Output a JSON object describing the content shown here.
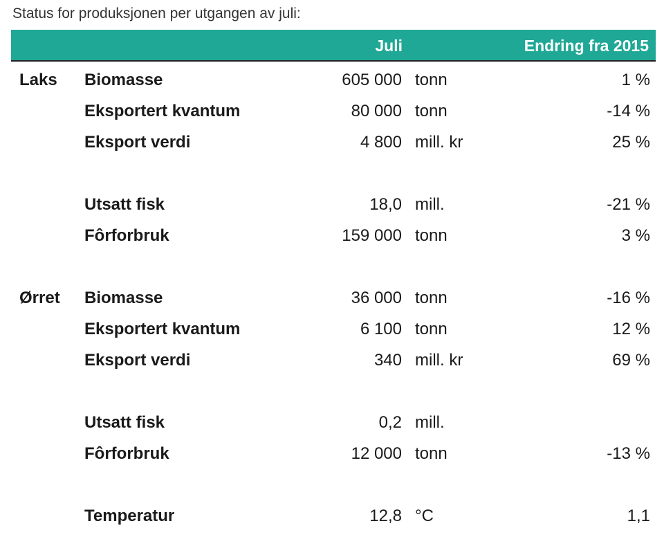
{
  "title": "Status for produksjonen per utgangen av juli:",
  "header": {
    "value": "Juli",
    "change": "Endring fra 2015"
  },
  "sections": [
    {
      "species": "Laks",
      "rows": [
        {
          "label": "Biomasse",
          "value": "605 000",
          "unit": "tonn",
          "change": "1 %"
        },
        {
          "label": "Eksportert kvantum",
          "value": "80 000",
          "unit": "tonn",
          "change": "-14 %"
        },
        {
          "label": "Eksport verdi",
          "value": "4 800",
          "unit": "mill. kr",
          "change": "25 %"
        }
      ]
    },
    {
      "rows": [
        {
          "label": "Utsatt fisk",
          "value": "18,0",
          "unit": "mill.",
          "change": "-21 %"
        },
        {
          "label": "Fôrforbruk",
          "value": "159 000",
          "unit": "tonn",
          "change": "3 %"
        }
      ]
    },
    {
      "species": "Ørret",
      "rows": [
        {
          "label": "Biomasse",
          "value": "36 000",
          "unit": "tonn",
          "change": "-16 %"
        },
        {
          "label": "Eksportert kvantum",
          "value": "6 100",
          "unit": "tonn",
          "change": "12 %"
        },
        {
          "label": "Eksport verdi",
          "value": "340",
          "unit": "mill. kr",
          "change": "69 %"
        }
      ]
    },
    {
      "rows": [
        {
          "label": "Utsatt fisk",
          "value": "0,2",
          "unit": "mill."
        },
        {
          "label": "Fôrforbruk",
          "value": "12 000",
          "unit": "tonn",
          "change": "-13 %"
        }
      ]
    },
    {
      "rows": [
        {
          "label": "Temperatur",
          "value": "12,8",
          "unit": "°C",
          "change": "1,1"
        }
      ]
    }
  ]
}
